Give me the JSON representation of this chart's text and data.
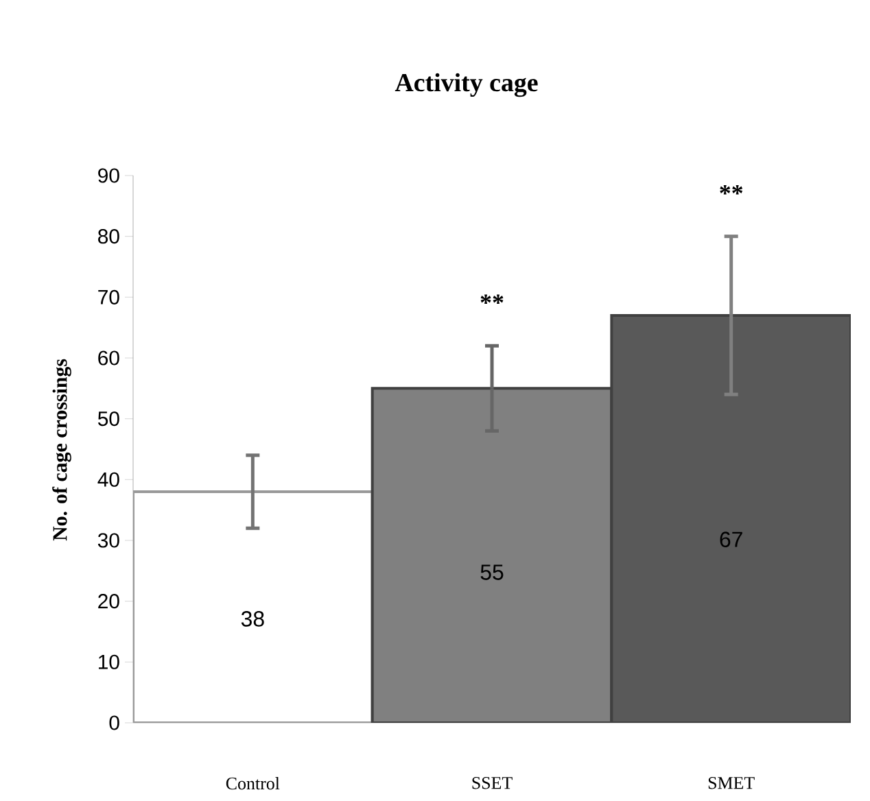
{
  "chart_data": {
    "type": "bar",
    "title": "Activity cage",
    "ylabel": "No. of cage crossings",
    "categories": [
      "Control",
      "SSET",
      "SMET"
    ],
    "values": [
      38,
      55,
      67
    ],
    "colors": [
      "#ffffff",
      "#808080",
      "#595959"
    ],
    "errors": [
      6,
      7,
      13
    ],
    "value_labels": [
      "38",
      "55",
      "67"
    ],
    "ylim": [
      0,
      90
    ],
    "yticks": [
      0,
      10,
      20,
      30,
      40,
      50,
      60,
      70,
      80,
      90
    ],
    "annotations": [
      "**",
      "**"
    ],
    "grid": false
  }
}
